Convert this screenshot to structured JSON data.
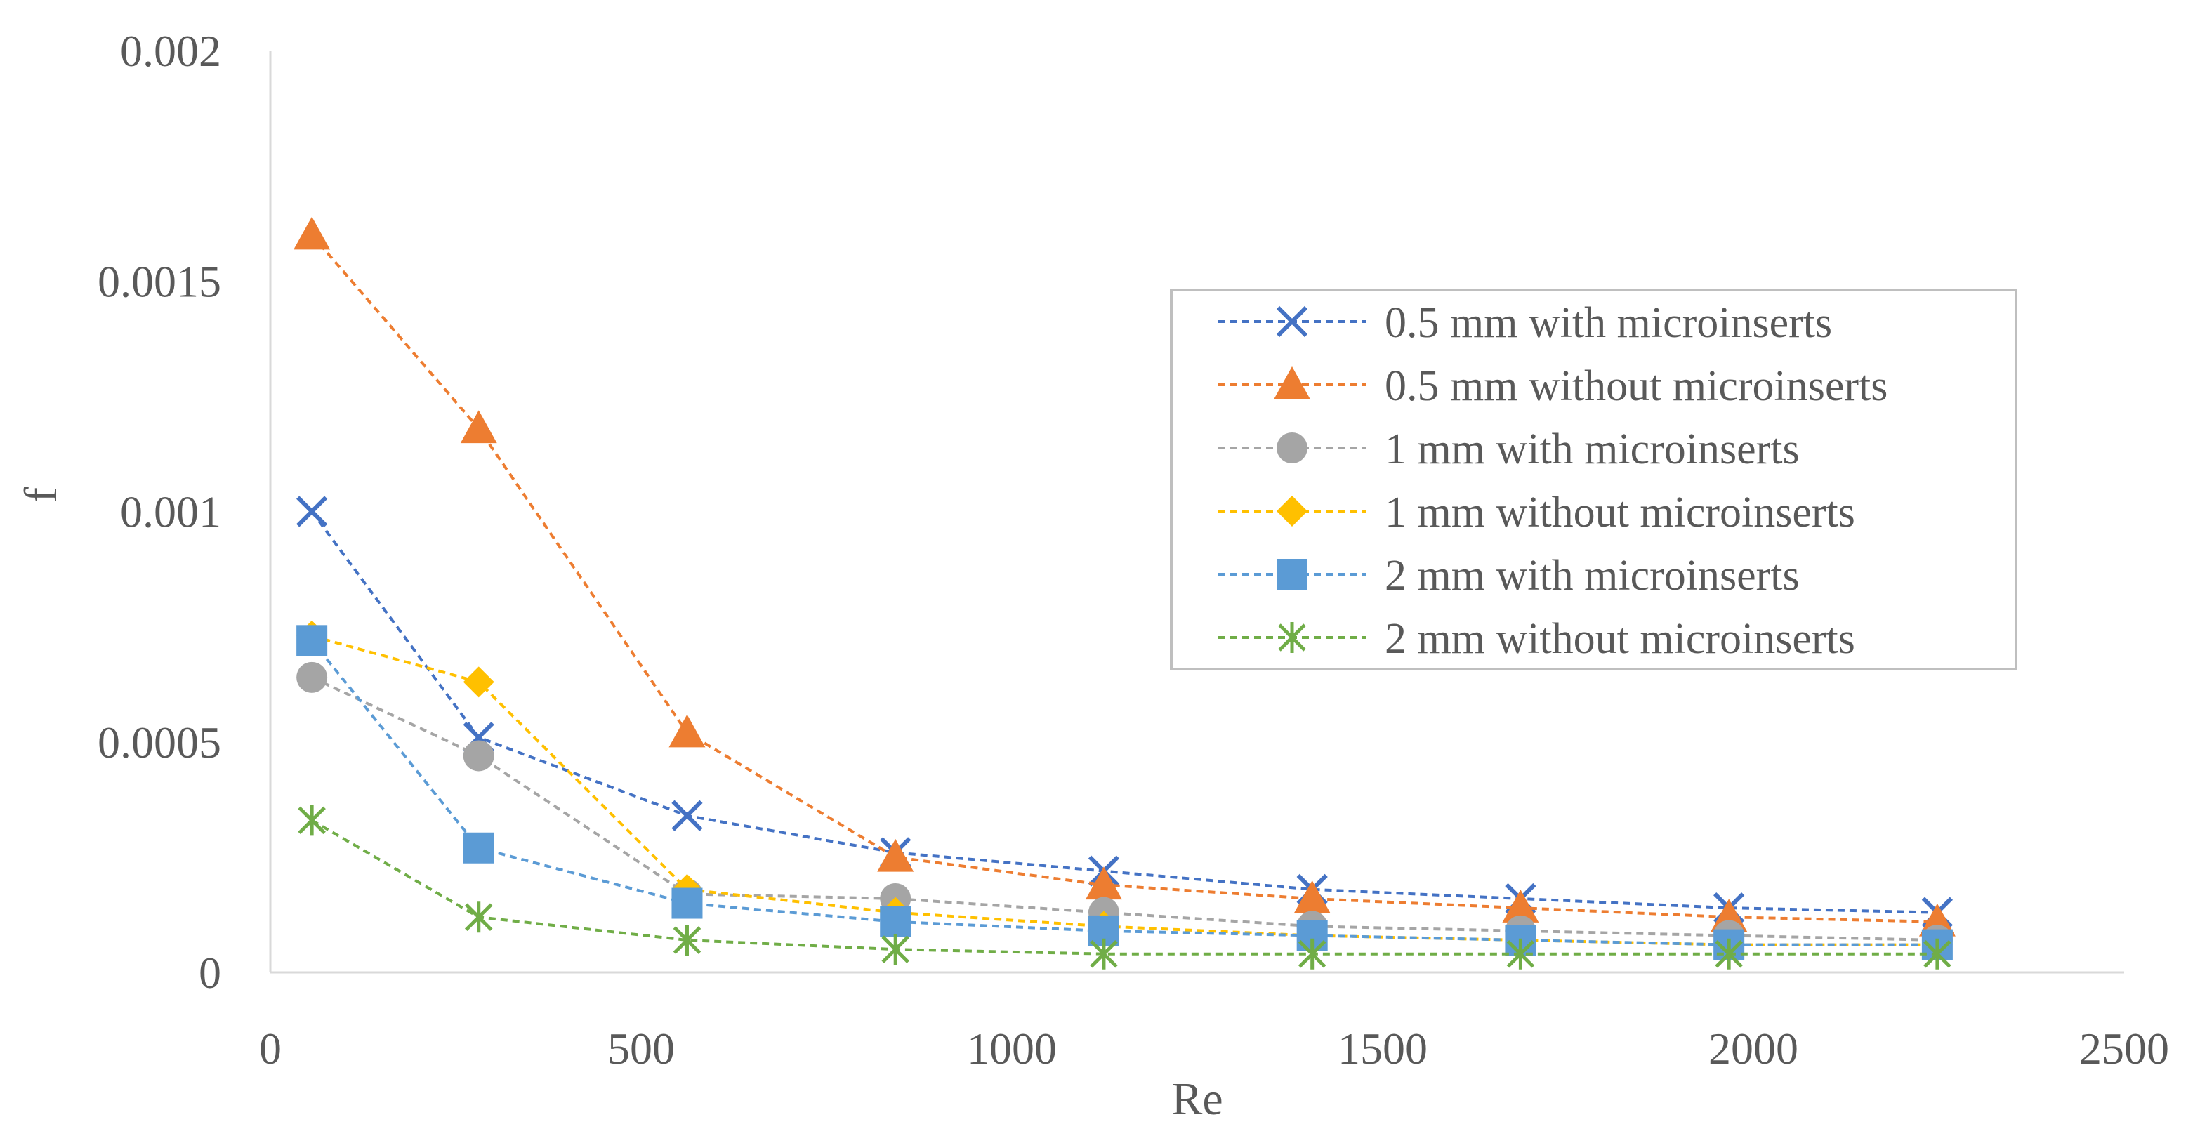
{
  "chart_data": {
    "type": "line",
    "title": "",
    "xlabel": "Re",
    "ylabel": "f",
    "xlim": [
      0,
      2500
    ],
    "ylim": [
      0,
      0.002
    ],
    "xticks": [
      0,
      500,
      1000,
      1500,
      2000,
      2500
    ],
    "xtick_labels": [
      "0",
      "500",
      "1000",
      "1500",
      "2000",
      "2500"
    ],
    "yticks": [
      0,
      0.0005,
      0.001,
      0.0015,
      0.002
    ],
    "ytick_labels": [
      "0",
      "0.0005",
      "0.001",
      "0.0015",
      "0.002"
    ],
    "grid": false,
    "legend_position": "right",
    "x": [
      56,
      281,
      562,
      843,
      1124,
      1405,
      1686,
      1967,
      2248
    ],
    "series": [
      {
        "name": "0.5 mm with microinserts",
        "color": "#4472C4",
        "marker": "x",
        "values": [
          0.001,
          0.00051,
          0.00034,
          0.00026,
          0.00022,
          0.00018,
          0.00016,
          0.00014,
          0.00013
        ]
      },
      {
        "name": "0.5 mm without microinserts",
        "color": "#ED7D31",
        "marker": "triangle",
        "values": [
          0.0016,
          0.00118,
          0.00052,
          0.00025,
          0.00019,
          0.00016,
          0.00014,
          0.00012,
          0.00011
        ]
      },
      {
        "name": "1 mm with microinserts",
        "color": "#A5A5A5",
        "marker": "circle",
        "values": [
          0.00064,
          0.00047,
          0.00017,
          0.00016,
          0.00013,
          0.0001,
          9e-05,
          8e-05,
          7e-05
        ]
      },
      {
        "name": "1 mm without microinserts",
        "color": "#FFC000",
        "marker": "diamond",
        "values": [
          0.00073,
          0.00063,
          0.00018,
          0.00013,
          0.0001,
          8e-05,
          7e-05,
          6e-05,
          6e-05
        ]
      },
      {
        "name": "2 mm with microinserts",
        "color": "#5B9BD5",
        "marker": "square",
        "values": [
          0.00072,
          0.00027,
          0.00015,
          0.00011,
          9e-05,
          8e-05,
          7e-05,
          6e-05,
          6e-05
        ]
      },
      {
        "name": "2 mm without microinserts",
        "color": "#70AD47",
        "marker": "star",
        "values": [
          0.00033,
          0.00012,
          7e-05,
          5e-05,
          4e-05,
          4e-05,
          4e-05,
          4e-05,
          4e-05
        ]
      }
    ]
  }
}
